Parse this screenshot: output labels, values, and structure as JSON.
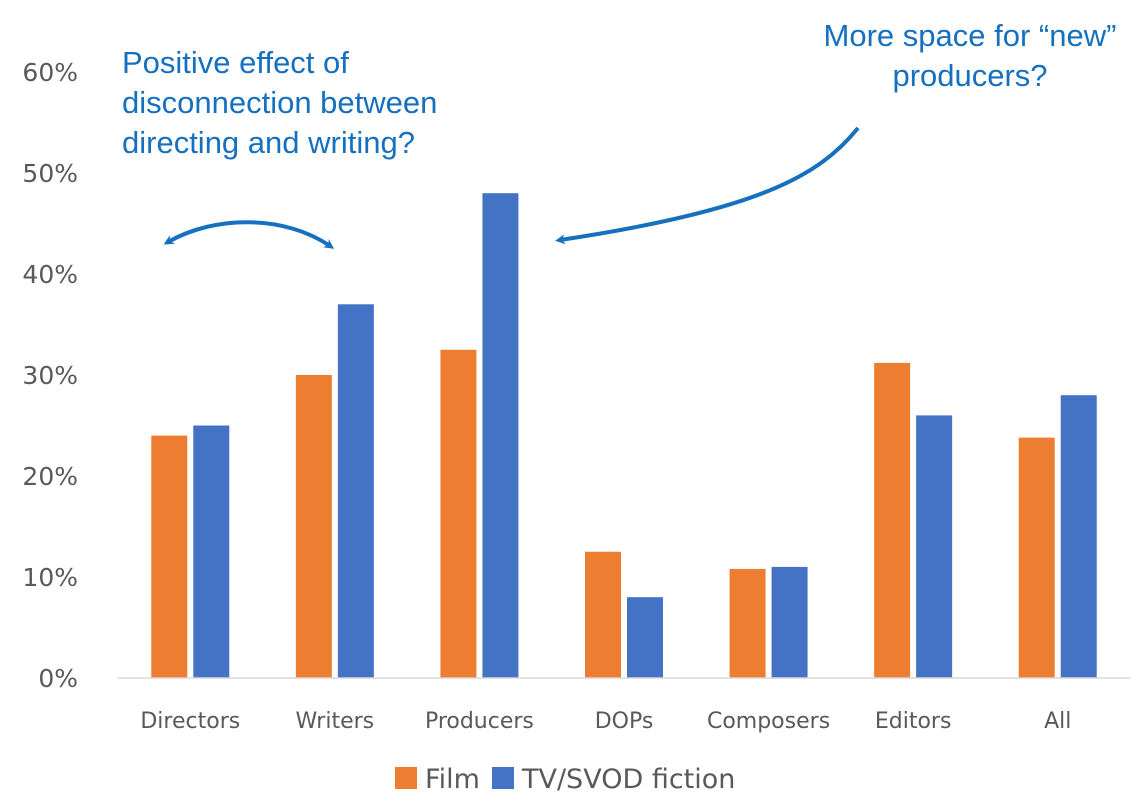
{
  "chart_data": {
    "type": "bar",
    "categories": [
      "Directors",
      "Writers",
      "Producers",
      "DOPs",
      "Composers",
      "Editors",
      "All"
    ],
    "series": [
      {
        "name": "Film",
        "color": "#ED7D31",
        "values": [
          24,
          30,
          32.5,
          12.5,
          10.8,
          31.2,
          23.8
        ]
      },
      {
        "name": "TV/SVOD fiction",
        "color": "#4472C4",
        "values": [
          25,
          37,
          48,
          8,
          11,
          26,
          28
        ]
      }
    ],
    "ylim": [
      0,
      60
    ],
    "yticks": [
      0,
      10,
      20,
      30,
      40,
      50,
      60
    ],
    "ytick_labels": [
      "0%",
      "10%",
      "20%",
      "30%",
      "40%",
      "50%",
      "60%"
    ],
    "grid": false,
    "legend_position": "bottom",
    "title": "",
    "xlabel": "",
    "ylabel": ""
  },
  "annotations": {
    "left": "Positive effect of\ndisconnection between\ndirecting and writing?",
    "right": "More space for “new”\nproducers?",
    "color": "#1570C0"
  }
}
